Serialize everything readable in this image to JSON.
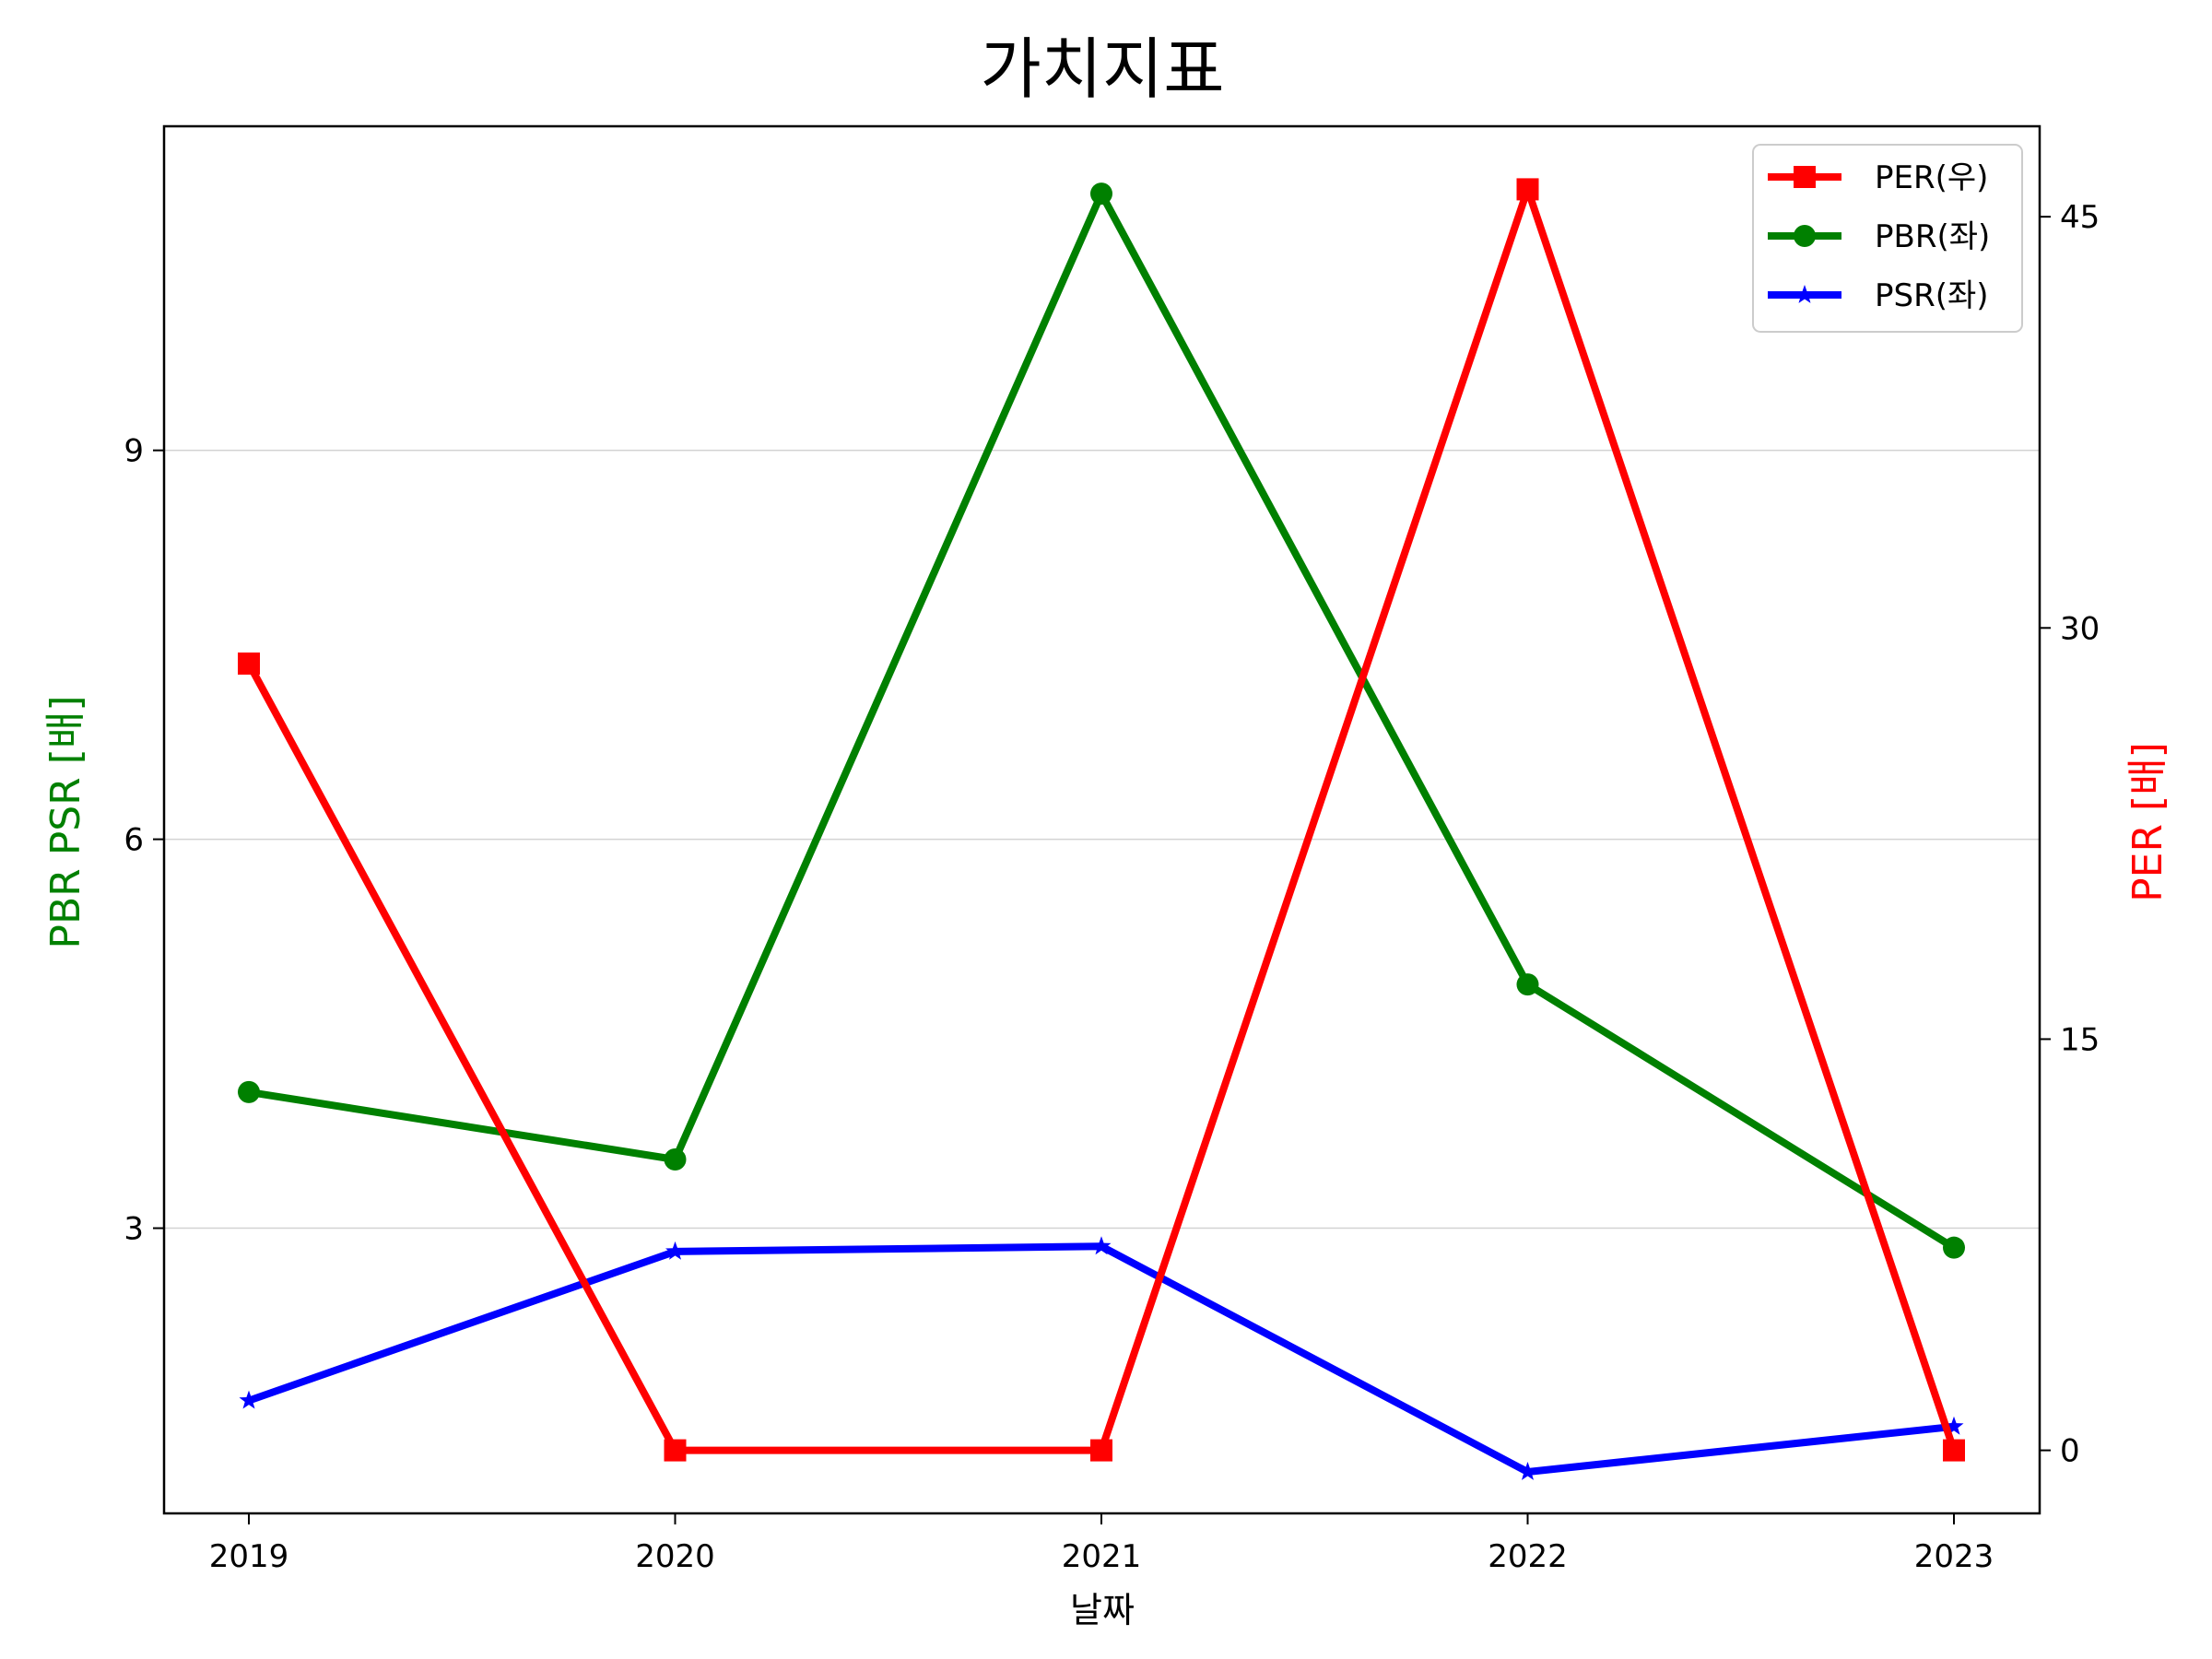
{
  "chart_data": {
    "type": "line",
    "title": "가치지표",
    "xlabel": "날짜",
    "ylabel_left": "PBR PSR [배]",
    "ylabel_right": "PER [배]",
    "categories": [
      "2019",
      "2020",
      "2021",
      "2022",
      "2023"
    ],
    "left_axis": {
      "ylim": [
        0.8,
        11.5
      ],
      "ticks": [
        3,
        6,
        9
      ],
      "color": "#008000"
    },
    "right_axis": {
      "ylim": [
        -2.3,
        48.3
      ],
      "ticks": [
        0,
        15,
        30,
        45
      ],
      "color": "#ff0000"
    },
    "series": [
      {
        "name": "PER(우)",
        "axis": "right",
        "color": "#ff0000",
        "marker": "square",
        "values": [
          28.7,
          0,
          0,
          46.0,
          0
        ]
      },
      {
        "name": "PBR(좌)",
        "axis": "left",
        "color": "#008000",
        "marker": "circle",
        "values": [
          4.05,
          3.53,
          10.98,
          4.88,
          2.85
        ]
      },
      {
        "name": "PSR(좌)",
        "axis": "left",
        "color": "#0000ff",
        "marker": "star",
        "values": [
          1.67,
          2.82,
          2.86,
          1.12,
          1.47
        ]
      }
    ],
    "grid": "horizontal-left",
    "legend_position": "top-right"
  }
}
